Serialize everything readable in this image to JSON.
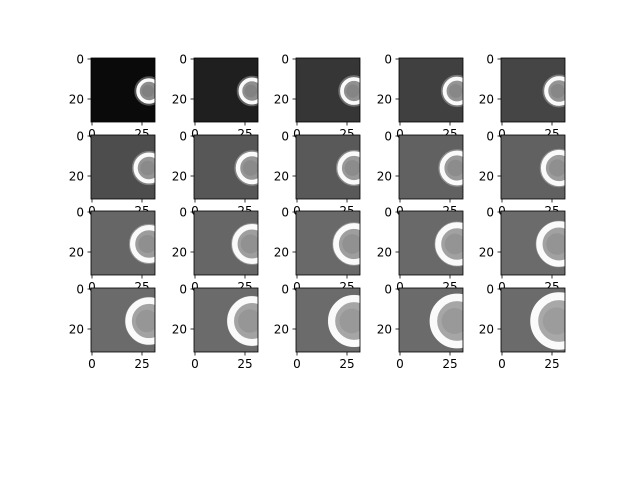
{
  "chart_data": {
    "type": "heatmap",
    "layout": {
      "rows": 4,
      "cols": 5
    },
    "colormap": "gray",
    "image_size": [
      32,
      32
    ],
    "x_ticks": [
      0,
      25
    ],
    "y_ticks": [
      0,
      20
    ],
    "x_tick_labels": [
      "0",
      "25"
    ],
    "y_tick_labels": [
      "0",
      "20"
    ],
    "xlim": [
      -0.5,
      31.5
    ],
    "ylim": [
      31.5,
      -0.5
    ],
    "frames": [
      {
        "bg": 0.04,
        "radius": 5.5,
        "ring": 0.98,
        "inner": 0.55
      },
      {
        "bg": 0.12,
        "radius": 5.8,
        "ring": 0.98,
        "inner": 0.56
      },
      {
        "bg": 0.21,
        "radius": 6.0,
        "ring": 0.98,
        "inner": 0.57
      },
      {
        "bg": 0.25,
        "radius": 6.2,
        "ring": 0.98,
        "inner": 0.58
      },
      {
        "bg": 0.27,
        "radius": 6.4,
        "ring": 0.98,
        "inner": 0.58
      },
      {
        "bg": 0.3,
        "radius": 6.7,
        "ring": 0.98,
        "inner": 0.59
      },
      {
        "bg": 0.34,
        "radius": 7.0,
        "ring": 0.98,
        "inner": 0.59
      },
      {
        "bg": 0.35,
        "radius": 7.2,
        "ring": 0.98,
        "inner": 0.6
      },
      {
        "bg": 0.38,
        "radius": 7.5,
        "ring": 0.98,
        "inner": 0.6
      },
      {
        "bg": 0.38,
        "radius": 7.8,
        "ring": 0.98,
        "inner": 0.61
      },
      {
        "bg": 0.4,
        "radius": 8.2,
        "ring": 0.98,
        "inner": 0.61
      },
      {
        "bg": 0.4,
        "radius": 8.6,
        "ring": 0.98,
        "inner": 0.62
      },
      {
        "bg": 0.41,
        "radius": 9.0,
        "ring": 0.98,
        "inner": 0.62
      },
      {
        "bg": 0.41,
        "radius": 9.4,
        "ring": 0.98,
        "inner": 0.63
      },
      {
        "bg": 0.42,
        "radius": 9.8,
        "ring": 0.98,
        "inner": 0.63
      },
      {
        "bg": 0.42,
        "radius": 10.2,
        "ring": 0.98,
        "inner": 0.64
      },
      {
        "bg": 0.42,
        "radius": 10.7,
        "ring": 0.98,
        "inner": 0.64
      },
      {
        "bg": 0.42,
        "radius": 11.2,
        "ring": 0.98,
        "inner": 0.65
      },
      {
        "bg": 0.42,
        "radius": 11.8,
        "ring": 0.98,
        "inner": 0.65
      },
      {
        "bg": 0.42,
        "radius": 12.4,
        "ring": 0.98,
        "inner": 0.66
      }
    ],
    "center": [
      28.5,
      16
    ],
    "grid": false,
    "legend": "none"
  }
}
